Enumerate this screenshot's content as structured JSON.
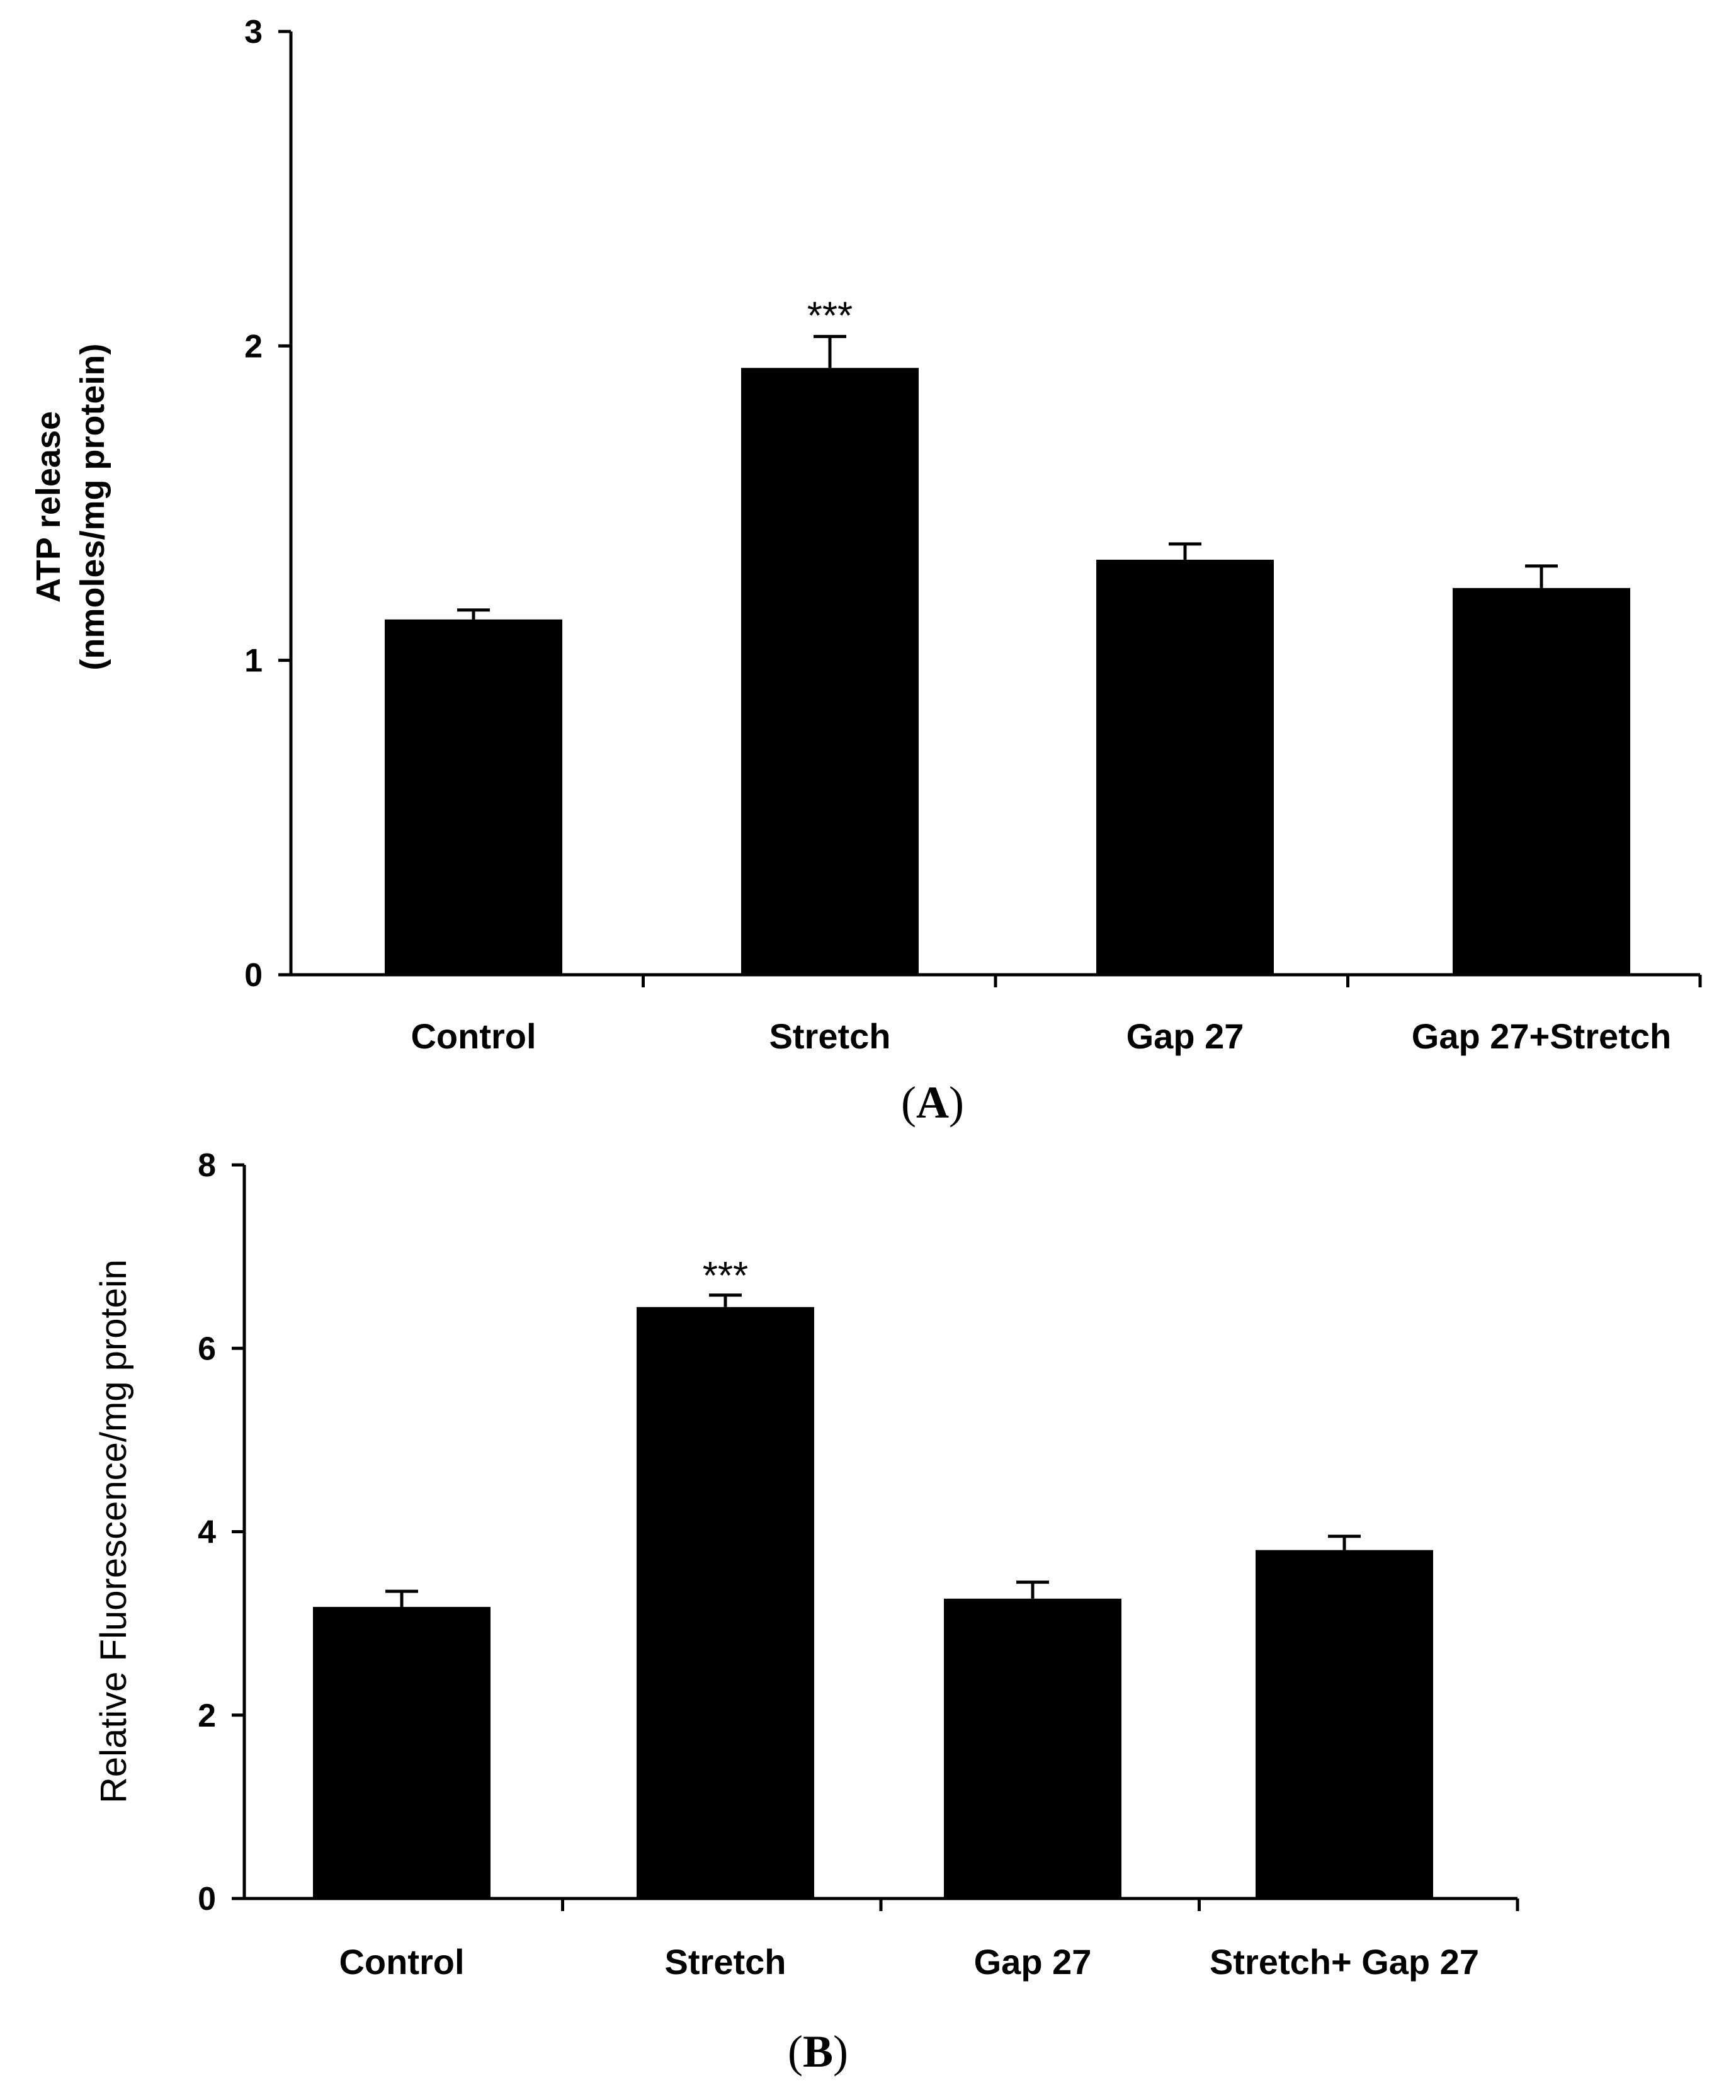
{
  "chart_data": [
    {
      "type": "bar",
      "panel_label": "A",
      "title": "",
      "xlabel": "",
      "ylabel": [
        "ATP release",
        "(nmoles/mg protein)"
      ],
      "ylim": [
        0,
        3
      ],
      "yticks": [
        "0",
        "1",
        "2",
        "3"
      ],
      "categories": [
        "Control",
        "Stretch",
        "Gap 27",
        "Gap 27+Stretch"
      ],
      "values": [
        1.13,
        1.93,
        1.32,
        1.23
      ],
      "errors": [
        0.03,
        0.1,
        0.05,
        0.07
      ],
      "annotations": [
        {
          "category": "Stretch",
          "text": "***"
        }
      ],
      "bar_color": "#000000"
    },
    {
      "type": "bar",
      "panel_label": "B",
      "title": "",
      "xlabel": "",
      "ylabel": [
        "Relative Fluorescence/mg protein"
      ],
      "ylim": [
        0,
        8
      ],
      "yticks": [
        "0",
        "2",
        "4",
        "6",
        "8"
      ],
      "categories": [
        "Control",
        "Stretch",
        "Gap 27",
        "Stretch+ Gap 27"
      ],
      "values": [
        3.18,
        6.45,
        3.27,
        3.8
      ],
      "errors": [
        0.17,
        0.13,
        0.18,
        0.15
      ],
      "annotations": [
        {
          "category": "Stretch",
          "text": "***"
        }
      ],
      "bar_color": "#000000"
    }
  ]
}
